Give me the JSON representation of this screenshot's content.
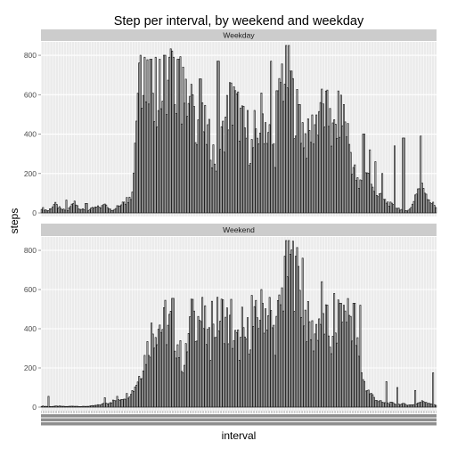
{
  "chart_data": {
    "type": "bar",
    "title": "Step per interval, by weekend and weekday",
    "xlabel": "interval",
    "ylabel": "steps",
    "ylim": [
      0,
      850
    ],
    "yticks": [
      0,
      200,
      400,
      600,
      800
    ],
    "x_tick_labels_legible": false,
    "grid": true,
    "theme": {
      "panel_background": "#ebebeb",
      "grid_major": "#ffffff",
      "grid_minor": "#f5f5f5",
      "strip_background": "#cccccc",
      "bar_fill": "#ffffff",
      "bar_outline": "#1a1a1a"
    },
    "facets": [
      {
        "name": "Weekday",
        "profile": [
          [
            0,
            25
          ],
          [
            8,
            10
          ],
          [
            16,
            45
          ],
          [
            24,
            18
          ],
          [
            32,
            12
          ],
          [
            40,
            55
          ],
          [
            48,
            20
          ],
          [
            56,
            10
          ],
          [
            64,
            25
          ],
          [
            72,
            30
          ],
          [
            80,
            40
          ],
          [
            88,
            10
          ],
          [
            96,
            40
          ],
          [
            104,
            60
          ],
          [
            112,
            100
          ],
          [
            120,
            760
          ],
          [
            128,
            720
          ],
          [
            136,
            650
          ],
          [
            144,
            560
          ],
          [
            152,
            600
          ],
          [
            160,
            720
          ],
          [
            168,
            680
          ],
          [
            176,
            560
          ],
          [
            184,
            520
          ],
          [
            192,
            480
          ],
          [
            200,
            440
          ],
          [
            208,
            360
          ],
          [
            216,
            250
          ],
          [
            224,
            400
          ],
          [
            232,
            560
          ],
          [
            240,
            530
          ],
          [
            248,
            450
          ],
          [
            256,
            340
          ],
          [
            264,
            320
          ],
          [
            272,
            500
          ],
          [
            280,
            420
          ],
          [
            288,
            300
          ],
          [
            296,
            700
          ],
          [
            304,
            700
          ],
          [
            312,
            540
          ],
          [
            320,
            460
          ],
          [
            328,
            360
          ],
          [
            336,
            440
          ],
          [
            344,
            520
          ],
          [
            352,
            500
          ],
          [
            360,
            380
          ],
          [
            368,
            500
          ],
          [
            376,
            460
          ],
          [
            384,
            250
          ],
          [
            392,
            120
          ],
          [
            400,
            250
          ],
          [
            408,
            120
          ],
          [
            416,
            90
          ],
          [
            424,
            60
          ],
          [
            432,
            40
          ],
          [
            440,
            25
          ],
          [
            448,
            10
          ],
          [
            456,
            20
          ],
          [
            464,
            120
          ],
          [
            472,
            130
          ],
          [
            480,
            60
          ],
          [
            487,
            30
          ]
        ],
        "spikes": [
          [
            122,
            800
          ],
          [
            127,
            790
          ],
          [
            135,
            780
          ],
          [
            141,
            790
          ],
          [
            146,
            780
          ],
          [
            152,
            800
          ],
          [
            158,
            790
          ],
          [
            163,
            790
          ],
          [
            169,
            780
          ],
          [
            175,
            740
          ],
          [
            186,
            600
          ],
          [
            196,
            680
          ],
          [
            218,
            770
          ],
          [
            238,
            640
          ],
          [
            254,
            520
          ],
          [
            263,
            520
          ],
          [
            283,
            770
          ],
          [
            291,
            620
          ],
          [
            308,
            720
          ],
          [
            318,
            550
          ],
          [
            345,
            560
          ],
          [
            357,
            530
          ],
          [
            373,
            550
          ],
          [
            398,
            400
          ],
          [
            405,
            320
          ],
          [
            413,
            260
          ],
          [
            421,
            200
          ],
          [
            436,
            340
          ],
          [
            447,
            380
          ],
          [
            469,
            390
          ],
          [
            30,
            65
          ],
          [
            41,
            60
          ],
          [
            55,
            48
          ],
          [
            78,
            45
          ],
          [
            101,
            55
          ],
          [
            109,
            80
          ]
        ]
      },
      {
        "name": "Weekend",
        "profile": [
          [
            0,
            5
          ],
          [
            10,
            3
          ],
          [
            20,
            5
          ],
          [
            30,
            3
          ],
          [
            40,
            5
          ],
          [
            50,
            3
          ],
          [
            60,
            5
          ],
          [
            70,
            10
          ],
          [
            80,
            20
          ],
          [
            88,
            30
          ],
          [
            96,
            40
          ],
          [
            104,
            55
          ],
          [
            112,
            80
          ],
          [
            120,
            150
          ],
          [
            128,
            260
          ],
          [
            136,
            380
          ],
          [
            144,
            430
          ],
          [
            152,
            400
          ],
          [
            160,
            420
          ],
          [
            168,
            320
          ],
          [
            176,
            200
          ],
          [
            184,
            430
          ],
          [
            192,
            470
          ],
          [
            200,
            430
          ],
          [
            208,
            300
          ],
          [
            216,
            440
          ],
          [
            224,
            470
          ],
          [
            232,
            400
          ],
          [
            240,
            330
          ],
          [
            248,
            310
          ],
          [
            256,
            380
          ],
          [
            264,
            420
          ],
          [
            272,
            520
          ],
          [
            280,
            480
          ],
          [
            288,
            360
          ],
          [
            296,
            540
          ],
          [
            304,
            740
          ],
          [
            312,
            700
          ],
          [
            320,
            600
          ],
          [
            328,
            430
          ],
          [
            336,
            360
          ],
          [
            344,
            460
          ],
          [
            352,
            420
          ],
          [
            360,
            300
          ],
          [
            368,
            450
          ],
          [
            376,
            500
          ],
          [
            384,
            450
          ],
          [
            392,
            250
          ],
          [
            400,
            100
          ],
          [
            408,
            60
          ],
          [
            416,
            30
          ],
          [
            424,
            20
          ],
          [
            432,
            20
          ],
          [
            440,
            15
          ],
          [
            448,
            15
          ],
          [
            456,
            10
          ],
          [
            464,
            20
          ],
          [
            472,
            30
          ],
          [
            480,
            20
          ],
          [
            487,
            10
          ]
        ],
        "spikes": [
          [
            9,
            55
          ],
          [
            78,
            48
          ],
          [
            93,
            55
          ],
          [
            110,
            65
          ],
          [
            153,
            545
          ],
          [
            162,
            555
          ],
          [
            186,
            550
          ],
          [
            198,
            560
          ],
          [
            211,
            540
          ],
          [
            234,
            550
          ],
          [
            248,
            510
          ],
          [
            259,
            570
          ],
          [
            272,
            600
          ],
          [
            282,
            560
          ],
          [
            300,
            770
          ],
          [
            307,
            780
          ],
          [
            314,
            770
          ],
          [
            322,
            760
          ],
          [
            346,
            640
          ],
          [
            361,
            580
          ],
          [
            369,
            530
          ],
          [
            386,
            530
          ],
          [
            393,
            520
          ],
          [
            426,
            130
          ],
          [
            440,
            100
          ],
          [
            461,
            85
          ],
          [
            483,
            175
          ]
        ]
      }
    ]
  }
}
